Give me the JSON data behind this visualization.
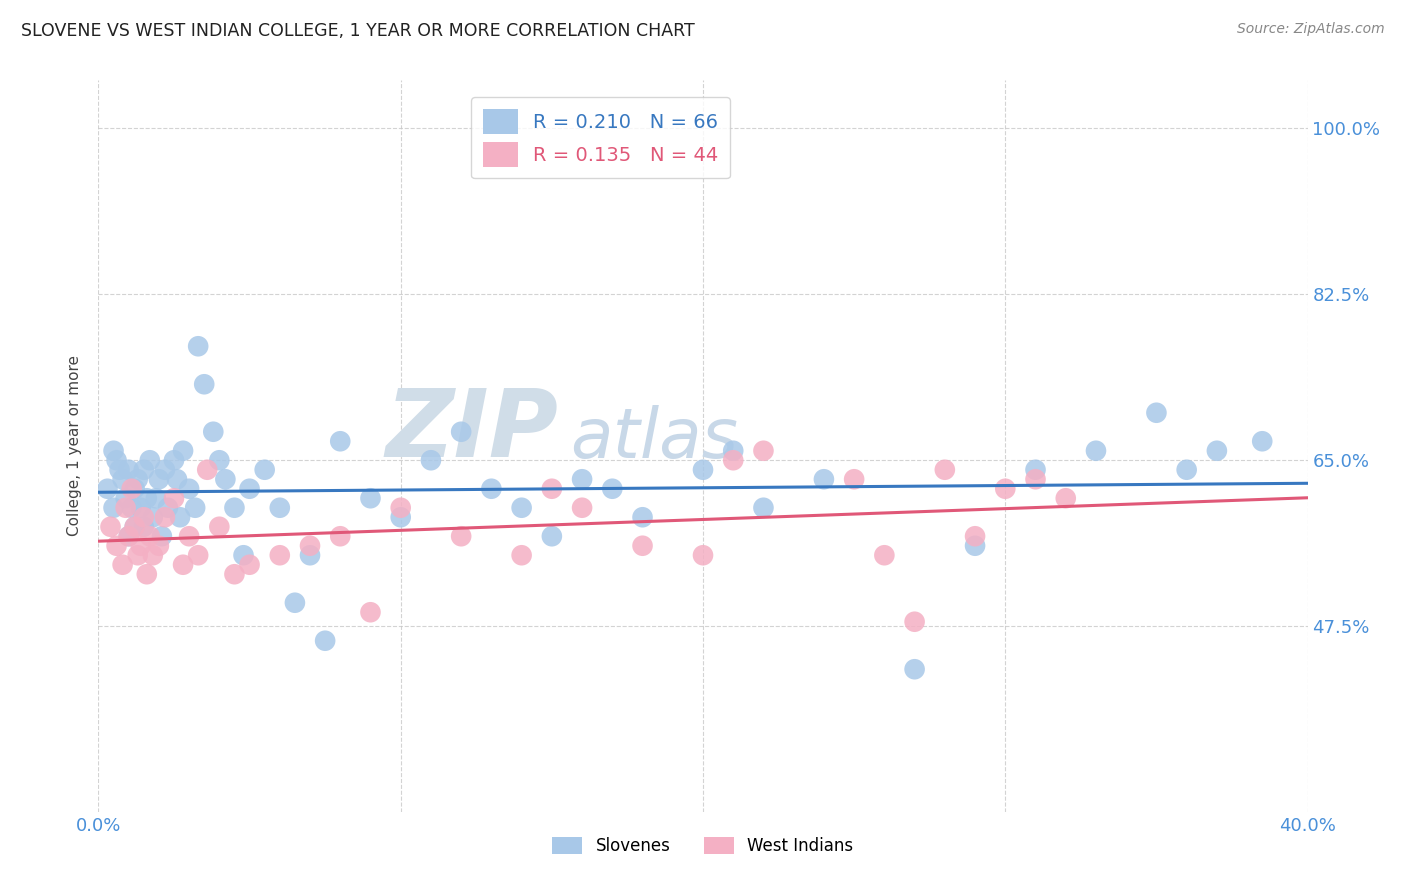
{
  "title": "SLOVENE VS WEST INDIAN COLLEGE, 1 YEAR OR MORE CORRELATION CHART",
  "source": "Source: ZipAtlas.com",
  "ylabel": "College, 1 year or more",
  "xlim": [
    0.0,
    0.4
  ],
  "ylim": [
    0.28,
    1.05
  ],
  "ytick_vals": [
    0.475,
    0.65,
    0.825,
    1.0
  ],
  "ytick_labels": [
    "47.5%",
    "65.0%",
    "82.5%",
    "100.0%"
  ],
  "slovene_R": 0.21,
  "slovene_N": 66,
  "westindian_R": 0.135,
  "westindian_N": 44,
  "slovene_color": "#a8c8e8",
  "westindian_color": "#f4b0c4",
  "slovene_line_color": "#3878c0",
  "westindian_line_color": "#e05878",
  "background_color": "#ffffff",
  "grid_color": "#c8c8c8",
  "title_color": "#222222",
  "axis_label_color": "#4a90d9",
  "watermark_zip_color": "#d0dde8",
  "watermark_atlas_color": "#c8d8e8",
  "legend_label_color": "#3878c0",
  "slovene_x": [
    0.003,
    0.005,
    0.005,
    0.006,
    0.007,
    0.008,
    0.009,
    0.01,
    0.01,
    0.011,
    0.012,
    0.012,
    0.013,
    0.014,
    0.015,
    0.015,
    0.016,
    0.017,
    0.018,
    0.019,
    0.02,
    0.021,
    0.022,
    0.023,
    0.025,
    0.026,
    0.027,
    0.028,
    0.03,
    0.032,
    0.033,
    0.035,
    0.038,
    0.04,
    0.042,
    0.045,
    0.048,
    0.05,
    0.055,
    0.06,
    0.065,
    0.07,
    0.075,
    0.08,
    0.09,
    0.1,
    0.11,
    0.12,
    0.13,
    0.14,
    0.15,
    0.16,
    0.17,
    0.18,
    0.2,
    0.21,
    0.22,
    0.24,
    0.27,
    0.29,
    0.31,
    0.33,
    0.35,
    0.36,
    0.37,
    0.385
  ],
  "slovene_y": [
    0.62,
    0.6,
    0.66,
    0.65,
    0.64,
    0.63,
    0.61,
    0.57,
    0.64,
    0.6,
    0.62,
    0.58,
    0.63,
    0.6,
    0.64,
    0.58,
    0.61,
    0.65,
    0.59,
    0.61,
    0.63,
    0.57,
    0.64,
    0.6,
    0.65,
    0.63,
    0.59,
    0.66,
    0.62,
    0.6,
    0.77,
    0.73,
    0.68,
    0.65,
    0.63,
    0.6,
    0.55,
    0.62,
    0.64,
    0.6,
    0.5,
    0.55,
    0.46,
    0.67,
    0.61,
    0.59,
    0.65,
    0.68,
    0.62,
    0.6,
    0.57,
    0.63,
    0.62,
    0.59,
    0.64,
    0.66,
    0.6,
    0.63,
    0.43,
    0.56,
    0.64,
    0.66,
    0.7,
    0.64,
    0.66,
    0.67
  ],
  "westindian_x": [
    0.004,
    0.006,
    0.008,
    0.009,
    0.01,
    0.011,
    0.012,
    0.013,
    0.014,
    0.015,
    0.016,
    0.017,
    0.018,
    0.02,
    0.022,
    0.025,
    0.028,
    0.03,
    0.033,
    0.036,
    0.04,
    0.045,
    0.05,
    0.06,
    0.07,
    0.08,
    0.09,
    0.1,
    0.12,
    0.14,
    0.15,
    0.16,
    0.18,
    0.2,
    0.21,
    0.22,
    0.25,
    0.26,
    0.27,
    0.28,
    0.29,
    0.3,
    0.31,
    0.32
  ],
  "westindian_y": [
    0.58,
    0.56,
    0.54,
    0.6,
    0.57,
    0.62,
    0.58,
    0.55,
    0.56,
    0.59,
    0.53,
    0.57,
    0.55,
    0.56,
    0.59,
    0.61,
    0.54,
    0.57,
    0.55,
    0.64,
    0.58,
    0.53,
    0.54,
    0.55,
    0.56,
    0.57,
    0.49,
    0.6,
    0.57,
    0.55,
    0.62,
    0.6,
    0.56,
    0.55,
    0.65,
    0.66,
    0.63,
    0.55,
    0.48,
    0.64,
    0.57,
    0.62,
    0.63,
    0.61
  ]
}
